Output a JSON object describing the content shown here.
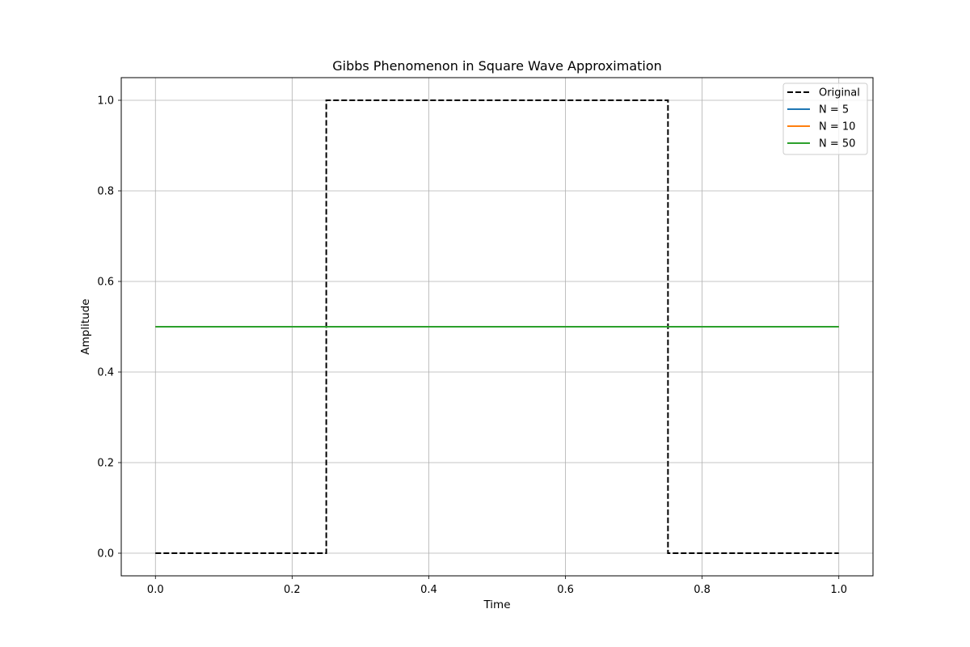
{
  "chart_data": {
    "type": "line",
    "title": "Gibbs Phenomenon in Square Wave Approximation",
    "xlabel": "Time",
    "ylabel": "Amplitude",
    "xlim": [
      -0.05,
      1.05
    ],
    "ylim": [
      -0.05,
      1.05
    ],
    "xticks": [
      0.0,
      0.2,
      0.4,
      0.6,
      0.8,
      1.0
    ],
    "xtick_labels": [
      "0.0",
      "0.2",
      "0.4",
      "0.6",
      "0.8",
      "1.0"
    ],
    "yticks": [
      0.0,
      0.2,
      0.4,
      0.6,
      0.8,
      1.0
    ],
    "ytick_labels": [
      "0.0",
      "0.2",
      "0.4",
      "0.6",
      "0.8",
      "1.0"
    ],
    "grid": true,
    "legend_position": "top-right",
    "series": [
      {
        "name": "Original",
        "color": "#000000",
        "dash": true,
        "x": [
          0.0,
          0.25,
          0.25,
          0.75,
          0.75,
          1.0
        ],
        "y": [
          0.0,
          0.0,
          1.0,
          1.0,
          0.0,
          0.0
        ]
      },
      {
        "name": "N = 5",
        "color": "#1f77b4",
        "dash": false,
        "x": [
          0.0,
          1.0
        ],
        "y": [
          0.5,
          0.5
        ]
      },
      {
        "name": "N = 10",
        "color": "#ff7f0e",
        "dash": false,
        "x": [
          0.0,
          1.0
        ],
        "y": [
          0.5,
          0.5
        ]
      },
      {
        "name": "N = 50",
        "color": "#2ca02c",
        "dash": false,
        "x": [
          0.0,
          1.0
        ],
        "y": [
          0.5,
          0.5
        ]
      }
    ]
  }
}
